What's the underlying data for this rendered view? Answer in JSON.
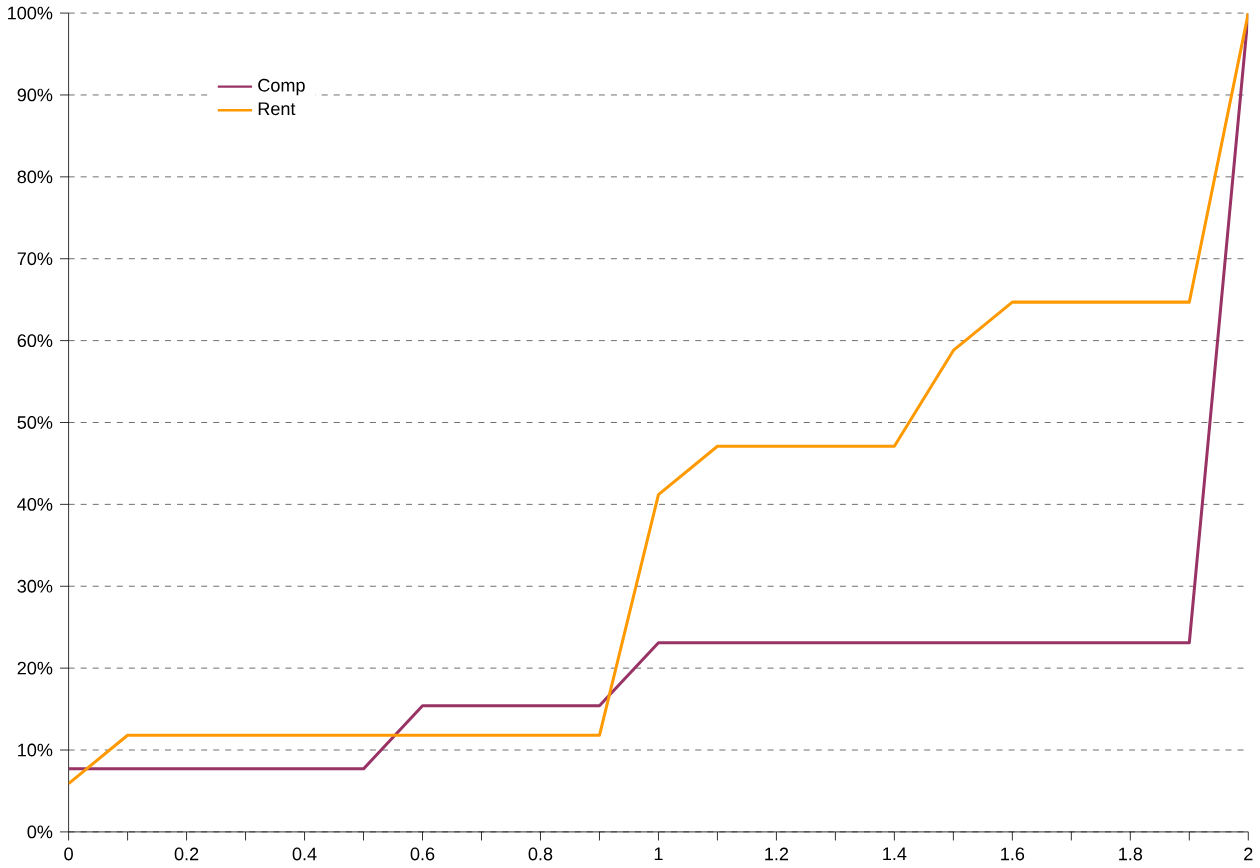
{
  "chart_data": {
    "type": "line",
    "x": [
      0,
      0.1,
      0.2,
      0.3,
      0.4,
      0.5,
      0.6,
      0.7,
      0.8,
      0.9,
      1,
      1.1,
      1.2,
      1.3,
      1.4,
      1.5,
      1.6,
      1.7,
      1.8,
      1.9,
      2
    ],
    "series": [
      {
        "name": "Comp",
        "color": "#993366",
        "values": [
          7.7,
          7.7,
          7.7,
          7.7,
          7.7,
          7.7,
          15.4,
          15.4,
          15.4,
          15.4,
          23.1,
          23.1,
          23.1,
          23.1,
          23.1,
          23.1,
          23.1,
          23.1,
          23.1,
          23.1,
          100
        ]
      },
      {
        "name": "Rent",
        "color": "#ff9900",
        "values": [
          5.9,
          11.8,
          11.8,
          11.8,
          11.8,
          11.8,
          11.8,
          11.8,
          11.8,
          11.8,
          41.2,
          47.1,
          47.1,
          47.1,
          47.1,
          58.8,
          64.7,
          64.7,
          64.7,
          64.7,
          100
        ]
      }
    ],
    "xlim": [
      0,
      2
    ],
    "xticks": [
      0,
      {
        "value": 0.1,
        "label": null
      },
      0.2,
      {
        "value": 0.3,
        "label": null
      },
      0.4,
      {
        "value": 0.5,
        "label": null
      },
      0.6,
      {
        "value": 0.7,
        "label": null
      },
      0.8,
      {
        "value": 0.9,
        "label": null
      },
      1,
      {
        "value": 1.1,
        "label": null
      },
      1.2,
      {
        "value": 1.3,
        "label": null
      },
      1.4,
      {
        "value": 1.5,
        "label": null
      },
      1.6,
      {
        "value": 1.7,
        "label": null
      },
      1.8,
      {
        "value": 1.9,
        "label": null
      },
      2
    ],
    "ylim": [
      0,
      100
    ],
    "yticks": [
      {
        "value": 0,
        "label": "0%"
      },
      {
        "value": 10,
        "label": "10%"
      },
      {
        "value": 20,
        "label": "20%"
      },
      {
        "value": 30,
        "label": "30%"
      },
      {
        "value": 40,
        "label": "40%"
      },
      {
        "value": 50,
        "label": "50%"
      },
      {
        "value": 60,
        "label": "60%"
      },
      {
        "value": 70,
        "label": "70%"
      },
      {
        "value": 80,
        "label": "80%"
      },
      {
        "value": 90,
        "label": "90%"
      },
      {
        "value": 100,
        "label": "100%"
      }
    ],
    "grid": "y",
    "legend": "top left",
    "marker": "none",
    "line_style": "solid"
  }
}
